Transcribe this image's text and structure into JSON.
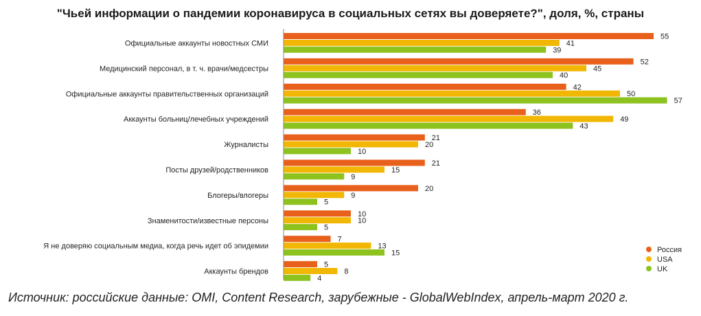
{
  "chart_data": {
    "type": "bar",
    "orientation": "horizontal",
    "title": "\"Чьей информации о пандемии коронавируса в социальных сетях вы доверяете?\", доля, %, страны",
    "categories": [
      "Официальные аккаунты новостных СМИ",
      "Медицинский персонал, в т. ч. врачи/медсестры",
      "Официальные аккаунты правительственных организаций",
      "Аккаунты больниц/лечебных учреждений",
      "Журналисты",
      "Посты друзей/родственников",
      "Блогеры/влогеры",
      "Знаменитости/известные персоны",
      "Я не доверяю социальным медиа, когда речь идет об эпидемии",
      "Аккаунты брендов"
    ],
    "series": [
      {
        "name": "Россия",
        "color": "#E8601C",
        "values": [
          55,
          52,
          42,
          36,
          21,
          21,
          20,
          10,
          7,
          5
        ]
      },
      {
        "name": "USA",
        "color": "#F2B705",
        "values": [
          41,
          45,
          50,
          49,
          20,
          15,
          9,
          10,
          13,
          8
        ]
      },
      {
        "name": "UK",
        "color": "#8DC21F",
        "values": [
          39,
          40,
          57,
          43,
          10,
          9,
          5,
          5,
          15,
          4
        ]
      }
    ],
    "xlim": [
      0,
      60
    ],
    "grid": false,
    "legend_position": "bottom-right"
  },
  "source": "Источник: российские данные: OMI, Content Research, зарубежные - GlobalWebIndex, апрель-март 2020 г."
}
